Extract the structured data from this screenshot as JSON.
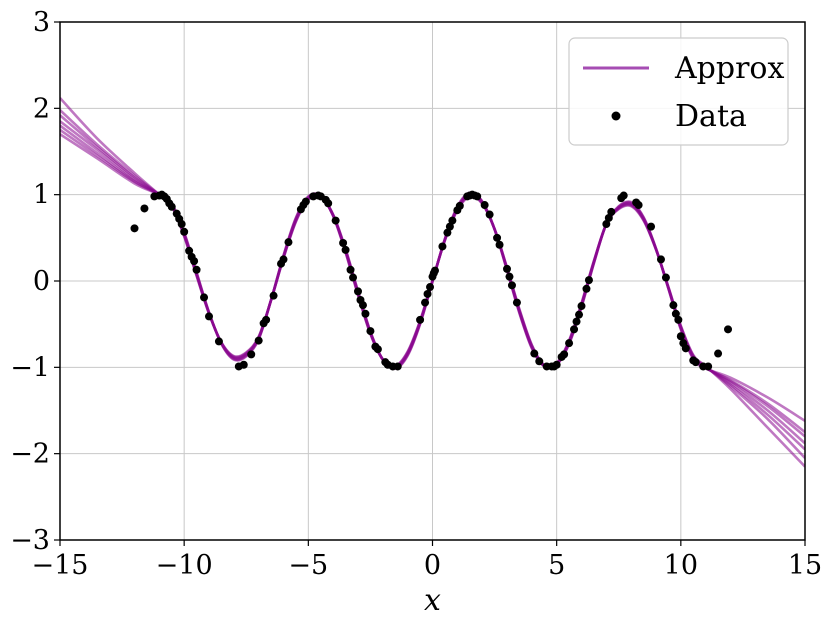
{
  "chart_data": {
    "type": "line",
    "title": "",
    "xlabel": "x",
    "ylabel": "",
    "xlim": [
      -15,
      15
    ],
    "ylim": [
      -3,
      3
    ],
    "xticks": [
      -15,
      -10,
      -5,
      0,
      5,
      10,
      15
    ],
    "yticks": [
      -3,
      -2,
      -1,
      0,
      1,
      2,
      3
    ],
    "xtick_labels": [
      "−15",
      "−10",
      "−5",
      "0",
      "5",
      "10",
      "15"
    ],
    "ytick_labels": [
      "−3",
      "−2",
      "−1",
      "0",
      "1",
      "2",
      "3"
    ],
    "grid": true,
    "legend": {
      "position": "upper-right",
      "entries": [
        {
          "label": "Approx",
          "kind": "line",
          "color": "#a64db3"
        },
        {
          "label": "Data",
          "kind": "marker",
          "color": "#000000"
        }
      ]
    },
    "colors": {
      "approx": "#8b0a8f",
      "data": "#000000"
    },
    "series": [
      {
        "name": "Approx",
        "kind": "line",
        "ensemble": [
          {
            "left": [
              [
                -15,
                2.12
              ],
              [
                -13.5,
                1.65
              ],
              [
                -12,
                1.25
              ],
              [
                -11,
                1.02
              ]
            ],
            "right": [
              [
                11,
                -1.02
              ],
              [
                12,
                -1.25
              ],
              [
                13.5,
                -1.7
              ],
              [
                15,
                -2.15
              ]
            ]
          },
          {
            "left": [
              [
                -15,
                1.98
              ],
              [
                -13.5,
                1.58
              ],
              [
                -12,
                1.22
              ],
              [
                -11,
                1.01
              ]
            ],
            "right": [
              [
                11,
                -1.01
              ],
              [
                12,
                -1.22
              ],
              [
                13.5,
                -1.6
              ],
              [
                15,
                -2.05
              ]
            ]
          },
          {
            "left": [
              [
                -15,
                1.92
              ],
              [
                -13.5,
                1.55
              ],
              [
                -12,
                1.2
              ],
              [
                -11,
                1.0
              ]
            ],
            "right": [
              [
                11,
                -1.0
              ],
              [
                12,
                -1.2
              ],
              [
                13.5,
                -1.55
              ],
              [
                15,
                -1.95
              ]
            ]
          },
          {
            "left": [
              [
                -15,
                1.85
              ],
              [
                -13.5,
                1.52
              ],
              [
                -12,
                1.18
              ],
              [
                -11,
                1.0
              ]
            ],
            "right": [
              [
                11,
                -1.0
              ],
              [
                12,
                -1.18
              ],
              [
                13.5,
                -1.5
              ],
              [
                15,
                -1.88
              ]
            ]
          },
          {
            "left": [
              [
                -15,
                1.8
              ],
              [
                -13.5,
                1.48
              ],
              [
                -12,
                1.16
              ],
              [
                -11,
                0.99
              ]
            ],
            "right": [
              [
                11,
                -0.99
              ],
              [
                12,
                -1.16
              ],
              [
                13.5,
                -1.45
              ],
              [
                15,
                -1.8
              ]
            ]
          },
          {
            "left": [
              [
                -15,
                1.75
              ],
              [
                -13.5,
                1.45
              ],
              [
                -12,
                1.15
              ],
              [
                -11,
                0.99
              ]
            ],
            "right": [
              [
                11,
                -0.99
              ],
              [
                12,
                -1.15
              ],
              [
                13.5,
                -1.42
              ],
              [
                15,
                -1.75
              ]
            ]
          },
          {
            "left": [
              [
                -15,
                1.7
              ],
              [
                -13.5,
                1.42
              ],
              [
                -12,
                1.13
              ],
              [
                -11,
                0.98
              ]
            ],
            "right": [
              [
                11,
                -0.98
              ],
              [
                12,
                -1.12
              ],
              [
                13.5,
                -1.35
              ],
              [
                15,
                -1.62
              ]
            ]
          }
        ],
        "core": [
          [
            -11,
            1.0
          ],
          [
            -10.5,
            0.88
          ],
          [
            -10,
            0.54
          ],
          [
            -9.5,
            0.08
          ],
          [
            -9,
            -0.37
          ],
          [
            -8.5,
            -0.72
          ],
          [
            -8,
            -0.89
          ],
          [
            -7.5,
            -0.85
          ],
          [
            -7,
            -0.66
          ],
          [
            -6.5,
            -0.22
          ],
          [
            -6,
            0.28
          ],
          [
            -5.5,
            0.71
          ],
          [
            -5,
            0.96
          ],
          [
            -4.5,
            0.98
          ],
          [
            -4,
            0.76
          ],
          [
            -3.5,
            0.35
          ],
          [
            -3,
            -0.14
          ],
          [
            -2.5,
            -0.6
          ],
          [
            -2,
            -0.91
          ],
          [
            -1.5,
            -1.0
          ],
          [
            -1,
            -0.84
          ],
          [
            -0.5,
            -0.48
          ],
          [
            0,
            0.0
          ],
          [
            0.5,
            0.48
          ],
          [
            1,
            0.84
          ],
          [
            1.5,
            1.0
          ],
          [
            2,
            0.91
          ],
          [
            2.5,
            0.6
          ],
          [
            3,
            0.14
          ],
          [
            3.5,
            -0.35
          ],
          [
            4,
            -0.76
          ],
          [
            4.5,
            -0.98
          ],
          [
            5,
            -0.96
          ],
          [
            5.5,
            -0.71
          ],
          [
            6,
            -0.28
          ],
          [
            6.5,
            0.22
          ],
          [
            7,
            0.66
          ],
          [
            7.5,
            0.85
          ],
          [
            8,
            0.89
          ],
          [
            8.5,
            0.72
          ],
          [
            9,
            0.37
          ],
          [
            9.5,
            -0.08
          ],
          [
            10,
            -0.54
          ],
          [
            10.5,
            -0.88
          ],
          [
            11,
            -1.0
          ]
        ]
      },
      {
        "name": "Data",
        "kind": "scatter",
        "points": [
          [
            -12,
            0.61
          ],
          [
            -11.6,
            0.84
          ],
          [
            -11.2,
            0.98
          ],
          [
            -11,
            0.99
          ],
          [
            -10.9,
            1.0
          ],
          [
            -10.8,
            0.98
          ],
          [
            -10.7,
            0.95
          ],
          [
            -10.6,
            0.9
          ],
          [
            -10.5,
            0.86
          ],
          [
            -10.3,
            0.78
          ],
          [
            -10.2,
            0.72
          ],
          [
            -10.1,
            0.66
          ],
          [
            -10,
            0.57
          ],
          [
            -9.8,
            0.35
          ],
          [
            -9.7,
            0.28
          ],
          [
            -9.6,
            0.23
          ],
          [
            -9.5,
            0.13
          ],
          [
            -9.2,
            -0.19
          ],
          [
            -9.0,
            -0.41
          ],
          [
            -8.6,
            -0.7
          ],
          [
            -7.8,
            -0.99
          ],
          [
            -7.6,
            -0.97
          ],
          [
            -7.3,
            -0.85
          ],
          [
            -7.0,
            -0.69
          ],
          [
            -6.8,
            -0.49
          ],
          [
            -6.7,
            -0.45
          ],
          [
            -6.4,
            -0.17
          ],
          [
            -6.1,
            0.2
          ],
          [
            -6.0,
            0.25
          ],
          [
            -5.8,
            0.45
          ],
          [
            -5.3,
            0.83
          ],
          [
            -5.2,
            0.88
          ],
          [
            -5.1,
            0.92
          ],
          [
            -4.8,
            0.98
          ],
          [
            -4.6,
            0.99
          ],
          [
            -4.5,
            0.98
          ],
          [
            -4.3,
            0.94
          ],
          [
            -4.2,
            0.9
          ],
          [
            -3.9,
            0.7
          ],
          [
            -3.6,
            0.44
          ],
          [
            -3.5,
            0.36
          ],
          [
            -3.3,
            0.13
          ],
          [
            -3.2,
            0.04
          ],
          [
            -3.0,
            -0.12
          ],
          [
            -2.9,
            -0.22
          ],
          [
            -2.8,
            -0.28
          ],
          [
            -2.7,
            -0.38
          ],
          [
            -2.5,
            -0.58
          ],
          [
            -2.3,
            -0.76
          ],
          [
            -2.2,
            -0.79
          ],
          [
            -1.9,
            -0.94
          ],
          [
            -1.8,
            -0.97
          ],
          [
            -1.6,
            -0.99
          ],
          [
            -1.4,
            -0.99
          ],
          [
            -0.5,
            -0.45
          ],
          [
            -0.3,
            -0.25
          ],
          [
            -0.2,
            -0.15
          ],
          [
            -0.1,
            -0.07
          ],
          [
            0.0,
            0.05
          ],
          [
            0.05,
            0.09
          ],
          [
            0.1,
            0.12
          ],
          [
            0.4,
            0.4
          ],
          [
            0.6,
            0.56
          ],
          [
            0.7,
            0.63
          ],
          [
            0.8,
            0.7
          ],
          [
            1.0,
            0.82
          ],
          [
            1.1,
            0.87
          ],
          [
            1.4,
            0.98
          ],
          [
            1.5,
            0.99
          ],
          [
            1.6,
            1.0
          ],
          [
            1.7,
            0.99
          ],
          [
            1.8,
            0.98
          ],
          [
            2.1,
            0.88
          ],
          [
            2.3,
            0.77
          ],
          [
            2.6,
            0.5
          ],
          [
            2.7,
            0.42
          ],
          [
            3.0,
            0.14
          ],
          [
            3.1,
            0.05
          ],
          [
            3.2,
            -0.05
          ],
          [
            3.4,
            -0.25
          ],
          [
            4.1,
            -0.84
          ],
          [
            4.3,
            -0.93
          ],
          [
            4.6,
            -0.99
          ],
          [
            4.8,
            -0.99
          ],
          [
            4.9,
            -0.99
          ],
          [
            5.0,
            -0.97
          ],
          [
            5.2,
            -0.88
          ],
          [
            5.3,
            -0.85
          ],
          [
            5.5,
            -0.72
          ],
          [
            5.7,
            -0.56
          ],
          [
            5.8,
            -0.47
          ],
          [
            5.9,
            -0.39
          ],
          [
            6.0,
            -0.29
          ],
          [
            6.2,
            -0.09
          ],
          [
            6.3,
            0.01
          ],
          [
            7.0,
            0.66
          ],
          [
            7.1,
            0.73
          ],
          [
            7.2,
            0.8
          ],
          [
            7.6,
            0.96
          ],
          [
            7.7,
            0.99
          ],
          [
            8.2,
            0.91
          ],
          [
            8.3,
            0.88
          ],
          [
            8.8,
            0.63
          ],
          [
            9.2,
            0.25
          ],
          [
            9.4,
            0.04
          ],
          [
            9.7,
            -0.28
          ],
          [
            9.8,
            -0.38
          ],
          [
            9.9,
            -0.45
          ],
          [
            10.0,
            -0.64
          ],
          [
            10.1,
            -0.72
          ],
          [
            10.2,
            -0.78
          ],
          [
            10.5,
            -0.92
          ],
          [
            10.6,
            -0.94
          ],
          [
            10.9,
            -0.99
          ],
          [
            11.1,
            -0.99
          ],
          [
            11.5,
            -0.84
          ],
          [
            11.9,
            -0.56
          ]
        ]
      }
    ]
  }
}
